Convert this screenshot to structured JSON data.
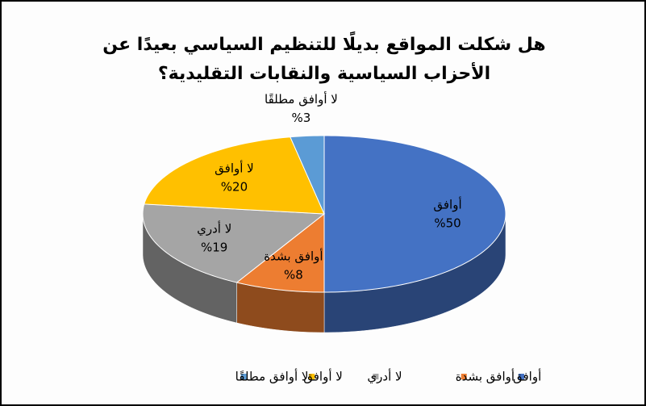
{
  "chart_data": {
    "type": "pie3d",
    "title": "هل شكلت المواقع بديلًا للتنظيم السياسي بعيدًا عن الأحزاب السياسية والنقابات التقليدية؟",
    "categories": [
      "أوافق",
      "أوافق بشدة",
      "لا أدري",
      "لا أوافق",
      "لا أوافق مطلقًا"
    ],
    "values": [
      50,
      8,
      19,
      20,
      3
    ],
    "value_labels": [
      "%50",
      "%8",
      "%19",
      "%20",
      "%3"
    ],
    "colors": [
      "#4472c4",
      "#ed7d31",
      "#a5a5a5",
      "#ffc000",
      "#5b9bd5"
    ],
    "legend": "bottom"
  }
}
